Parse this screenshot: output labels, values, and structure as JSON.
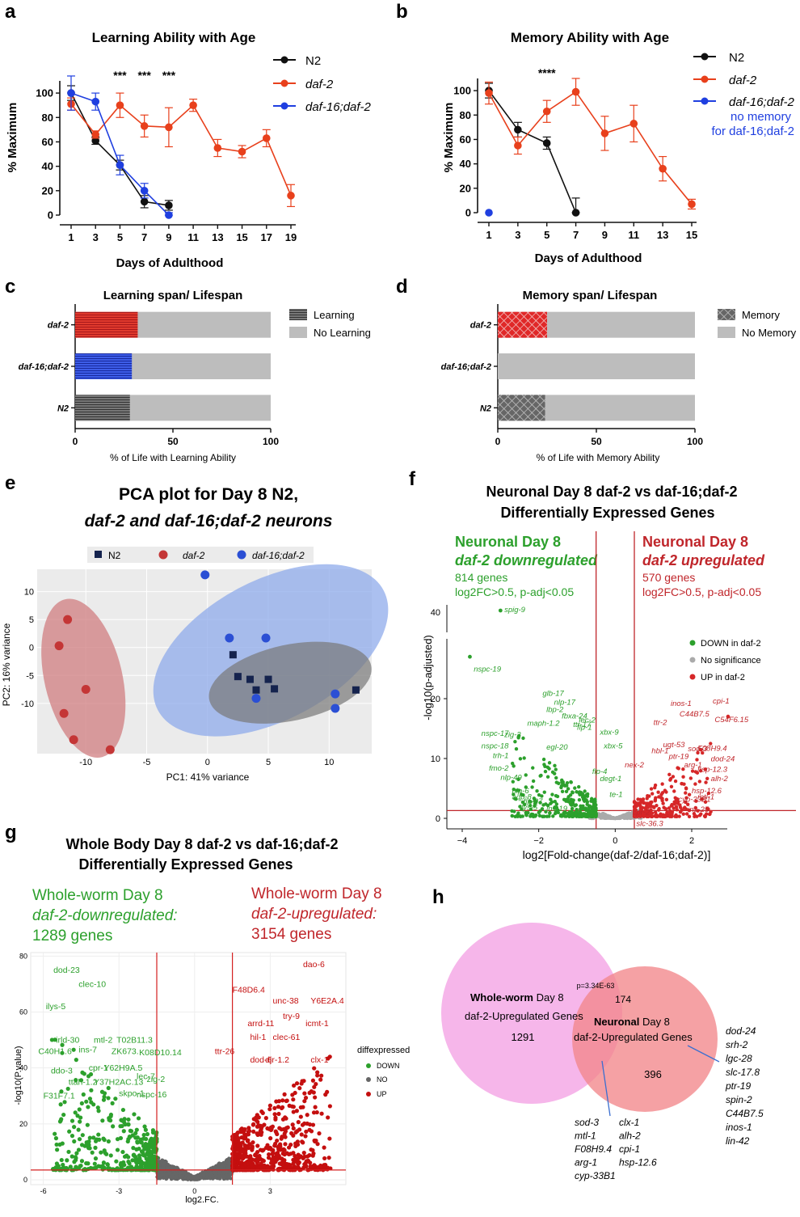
{
  "colors": {
    "black": "#111111",
    "red": "#e8401c",
    "blue": "#1f3fe0",
    "green": "#2ca02c",
    "darkred": "#c0262b",
    "grey": "#bdbdbd",
    "pink": "#f6b6ea",
    "salmon": "#f2868a",
    "pcaRed": "#d98c8f",
    "pcaBlue": "#9fb8ea",
    "pcaGrey": "#7f7f7f",
    "navy": "#15234e"
  },
  "panels": {
    "a": {
      "letter": "a",
      "title": "Learning Ability with Age",
      "xlabel": "Days of Adulthood",
      "ylabel": "% Maximum",
      "legend": [
        "N2",
        "daf-2",
        "daf-16;daf-2"
      ],
      "stars": [
        "***",
        "***",
        "***"
      ]
    },
    "b": {
      "letter": "b",
      "title": "Memory Ability with Age",
      "xlabel": "Days of Adulthood",
      "ylabel": "% Maximum",
      "legend": [
        "N2",
        "daf-2",
        "daf-16;daf-2"
      ],
      "note1": "no memory",
      "note2": "for daf-16;daf-2",
      "stars": "****"
    },
    "c": {
      "letter": "c",
      "title": "Learning span/ Lifespan",
      "xlabel": "% of Life with Learning Ability",
      "legend": [
        "Learning",
        "No Learning"
      ]
    },
    "d": {
      "letter": "d",
      "title": "Memory span/ Lifespan",
      "xlabel": "% of Life with Memory Ability",
      "legend": [
        "Memory",
        "No Memory"
      ]
    },
    "e": {
      "letter": "e",
      "title1": "PCA plot for Day 8 N2,",
      "title2": "daf-2 and daf-16;daf-2 neurons",
      "xlabel": "PC1: 41% variance",
      "ylabel": "PC2: 16% variance",
      "legend": [
        "N2",
        "daf-2",
        "daf-16;daf-2"
      ]
    },
    "f": {
      "letter": "f",
      "title1": "Neuronal Day 8 daf-2 vs daf-16;daf-2",
      "title2": "Differentially Expressed Genes",
      "down_h1": "Neuronal Day 8",
      "down_h2": "daf-2 downregulated",
      "down_n": "814 genes",
      "down_crit": "log2FC>0.5, p-adj<0.05",
      "up_h1": "Neuronal Day 8",
      "up_h2": "daf-2 upregulated",
      "up_n": "570 genes",
      "up_crit": "log2FC>0.5, p-adj<0.05",
      "ylabel": "-log10(p-adjusted)",
      "xlabel": "log2[Fold-change(daf-2/daf-16;daf-2)]",
      "legend": [
        "DOWN in daf-2",
        "No significance",
        "UP in daf-2"
      ]
    },
    "g": {
      "letter": "g",
      "title1": "Whole Body Day 8 daf-2 vs daf-16;daf-2",
      "title2": "Differentially Expressed Genes",
      "down_1": "Whole-worm Day 8",
      "down_2": "daf-2-downregulated:",
      "down_3": "1289 genes",
      "up_1": "Whole-worm Day 8",
      "up_2": "daf-2-upregulated:",
      "up_3": "3154 genes",
      "ylabel": "-log10(P.value)",
      "xlabel": "log2.FC.",
      "legend_title": "diffexpressed",
      "legend": [
        "DOWN",
        "NO",
        "UP"
      ]
    },
    "h": {
      "letter": "h",
      "left_bold": "Whole-worm",
      "left_1": " Day 8",
      "left_2": "daf-2-Upregulated Genes",
      "left_n": "1291",
      "right_bold": "Neuronal",
      "right_1": " Day 8",
      "right_2": "daf-2-Upregulated Genes",
      "right_n": "396",
      "pval": "p=3.34E-63",
      "overlap_n": "174",
      "genes_right": [
        "dod-24",
        "srh-2",
        "lgc-28",
        "slc-17.8",
        "ptr-19",
        "spin-2",
        "C44B7.5",
        "inos-1",
        "lin-42"
      ],
      "genes_col1": [
        "sod-3",
        "mtl-1",
        "F08H9.4",
        "arg-1",
        "cyp-33B1"
      ],
      "genes_col2": [
        "clx-1",
        "alh-2",
        "cpi-1",
        "hsp-12.6"
      ]
    }
  },
  "chart_data": [
    {
      "type": "line",
      "panel": "a",
      "title": "Learning Ability with Age",
      "xlabel": "Days of Adulthood",
      "ylabel": "% Maximum",
      "xticks": [
        1,
        3,
        5,
        7,
        9,
        11,
        13,
        15,
        17,
        19
      ],
      "ylim": [
        0,
        110
      ],
      "yticks": [
        0,
        20,
        40,
        60,
        80,
        100
      ],
      "series": [
        {
          "name": "N2",
          "color": "#111111",
          "x": [
            1,
            3,
            5,
            7,
            9
          ],
          "y": [
            100,
            61,
            41,
            11,
            8
          ],
          "err": [
            6,
            3,
            4,
            5,
            4
          ]
        },
        {
          "name": "daf-2",
          "color": "#e8401c",
          "x": [
            1,
            3,
            5,
            7,
            9,
            11,
            13,
            15,
            17,
            19
          ],
          "y": [
            91,
            66,
            90,
            73,
            72,
            90,
            55,
            52,
            63,
            16
          ],
          "err": [
            5,
            3,
            10,
            9,
            16,
            5,
            7,
            5,
            7,
            9
          ]
        },
        {
          "name": "daf-16;daf-2",
          "color": "#1f3fe0",
          "x": [
            1,
            3,
            5,
            7,
            9
          ],
          "y": [
            100,
            93,
            41,
            20,
            0
          ],
          "err": [
            14,
            7,
            8,
            6,
            2
          ]
        }
      ],
      "annotations": [
        {
          "x": 5,
          "text": "***"
        },
        {
          "x": 7,
          "text": "***"
        },
        {
          "x": 9,
          "text": "***"
        }
      ]
    },
    {
      "type": "line",
      "panel": "b",
      "title": "Memory Ability with Age",
      "xlabel": "Days of Adulthood",
      "ylabel": "% Maximum",
      "xticks": [
        1,
        3,
        5,
        7,
        9,
        11,
        13,
        15
      ],
      "ylim": [
        0,
        110
      ],
      "yticks": [
        0,
        20,
        40,
        60,
        80,
        100
      ],
      "series": [
        {
          "name": "N2",
          "color": "#111111",
          "x": [
            1,
            3,
            5,
            7
          ],
          "y": [
            100,
            68,
            57,
            0
          ],
          "err": [
            6,
            6,
            5,
            12
          ]
        },
        {
          "name": "daf-2",
          "color": "#e8401c",
          "x": [
            1,
            3,
            5,
            7,
            9,
            11,
            13,
            15
          ],
          "y": [
            98,
            55,
            83,
            99,
            65,
            73,
            36,
            7
          ],
          "err": [
            9,
            7,
            9,
            11,
            14,
            15,
            10,
            4
          ]
        },
        {
          "name": "daf-16;daf-2",
          "color": "#1f3fe0",
          "x": [
            1
          ],
          "y": [
            0
          ],
          "err": [
            0
          ]
        }
      ],
      "annotations": [
        {
          "x": 5,
          "text": "****"
        }
      ]
    },
    {
      "type": "bar",
      "panel": "c",
      "orientation": "horizontal",
      "title": "Learning span/ Lifespan",
      "categories": [
        "daf-2",
        "daf-16;daf-2",
        "N2"
      ],
      "values": [
        32,
        29,
        28
      ],
      "total": 100,
      "xticks": [
        0,
        50,
        100
      ],
      "xlabel": "% of Life with Learning Ability"
    },
    {
      "type": "bar",
      "panel": "d",
      "orientation": "horizontal",
      "title": "Memory span/ Lifespan",
      "categories": [
        "daf-2",
        "daf-16;daf-2",
        "N2"
      ],
      "values": [
        25,
        0,
        24
      ],
      "total": 100,
      "xticks": [
        0,
        50,
        100
      ],
      "xlabel": "% of Life with Memory Ability"
    },
    {
      "type": "scatter",
      "panel": "e",
      "title": "PCA plot for Day 8 N2, daf-2 and daf-16;daf-2 neurons",
      "xlabel": "PC1: 41% variance",
      "ylabel": "PC2: 16% variance",
      "xlim": [
        -14,
        13.5
      ],
      "ylim": [
        -19,
        14
      ],
      "xticks": [
        -10,
        -5,
        0,
        5,
        10
      ],
      "yticks": [
        10,
        5,
        0,
        -5,
        -10
      ],
      "series": [
        {
          "name": "N2",
          "color": "#15234e",
          "marker": "square",
          "x": [
            2.1,
            2.5,
            3.5,
            4.0,
            5.0,
            5.5,
            12.2
          ],
          "y": [
            -1.3,
            -5.2,
            -5.7,
            -7.6,
            -5.7,
            -7.4,
            -7.6
          ]
        },
        {
          "name": "daf-2",
          "color": "#c43636",
          "marker": "circle",
          "x": [
            -11.5,
            -12.2,
            -10.0,
            -11.8,
            -11.0,
            -8.0
          ],
          "y": [
            5.0,
            0.3,
            -7.5,
            -11.8,
            -16.5,
            -18.3
          ]
        },
        {
          "name": "daf-16;daf-2",
          "color": "#2b4fd4",
          "marker": "circle",
          "x": [
            -0.2,
            1.8,
            4.8,
            4.0,
            10.5,
            10.5
          ],
          "y": [
            13.0,
            1.7,
            1.7,
            -9.1,
            -8.3,
            -10.9
          ]
        }
      ]
    },
    {
      "type": "scatter",
      "panel": "f",
      "title": "Neuronal Day 8 daf-2 vs daf-16;daf-2 Differentially Expressed Genes",
      "xlabel": "log2[Fold-change(daf-2/daf-16;daf-2)]",
      "ylabel": "-log10(p-adjusted)",
      "xlim": [
        -4.2,
        3.2
      ],
      "xticks": [
        -4,
        -2,
        0,
        2
      ],
      "yticks": [
        0,
        10,
        20,
        40
      ],
      "thresholds": {
        "fc": 0.5,
        "p": 1.3
      },
      "labeled_down": [
        "spig-9",
        "nspc-19",
        "glb-17",
        "lbp-2",
        "nlp-17",
        "maph-1.2",
        "fbxa-24",
        "lec-2",
        "nspc-17",
        "zig-2",
        "ttr-17",
        "flp-1",
        "xbx-9",
        "nspc-18",
        "egl-20",
        "xbx-5",
        "trh-1",
        "fmo-2",
        "flp-4",
        "nlp-49",
        "degt-1",
        "nlp-6",
        "aqp-8",
        "flp-27",
        "ilys-5",
        "ins-19",
        "te-1"
      ],
      "labeled_up": [
        "cpi-1",
        "inos-1",
        "C44B7.5",
        "C54F6.15",
        "ttr-2",
        "ugt-53",
        "sod-3",
        "F08H9.4",
        "hbl-1",
        "ptr-19",
        "dod-24",
        "nex-2",
        "arg-1",
        "hsp-12.3",
        "alh-2",
        "hsp-12.6",
        "mtl-1",
        "cyp-33B1",
        "cpr-2",
        "ins-25",
        "slc-36.3"
      ]
    },
    {
      "type": "scatter",
      "panel": "g",
      "title": "Whole Body Day 8 daf-2 vs daf-16;daf-2 Differentially Expressed Genes",
      "xlabel": "log2.FC.",
      "ylabel": "-log10(P.value)",
      "xlim": [
        -6.5,
        6.0
      ],
      "ylim": [
        0,
        83
      ],
      "xticks": [
        -6,
        -3,
        0,
        3
      ],
      "yticks": [
        0,
        20,
        40,
        60,
        80
      ],
      "thresholds": {
        "fc": 1.5,
        "p": 3.5
      },
      "labeled_down": [
        "dod-23",
        "clec-10",
        "ilys-5",
        "irld-30",
        "mtl-2",
        "T02B11.3",
        "C40H1.6",
        "ins-7",
        "ZK673.",
        "K08D10.14",
        "ddo-3",
        "cpr-1",
        "Y62H9A.5",
        "ttah-1.2",
        "Y37H2AC.13",
        "lec-7",
        "zig-2",
        "F31F7.1",
        "nspc-16",
        "skpo-1"
      ],
      "labeled_up": [
        "dao-6",
        "F48D6.4",
        "unc-38",
        "Y6E2A.4",
        "try-9",
        "arrd-11",
        "icmt-1",
        "hil-1",
        "clec-61",
        "ttr-26",
        "dod-6",
        "djr-1.2",
        "clx-1"
      ]
    },
    {
      "type": "venn",
      "panel": "h",
      "sets": [
        {
          "name": "Whole-worm Day 8 daf-2-Upregulated Genes",
          "only": 1291
        },
        {
          "name": "Neuronal Day 8 daf-2-Upregulated Genes",
          "only": 396
        }
      ],
      "overlap": 174,
      "pvalue": "p=3.34E-63"
    }
  ]
}
